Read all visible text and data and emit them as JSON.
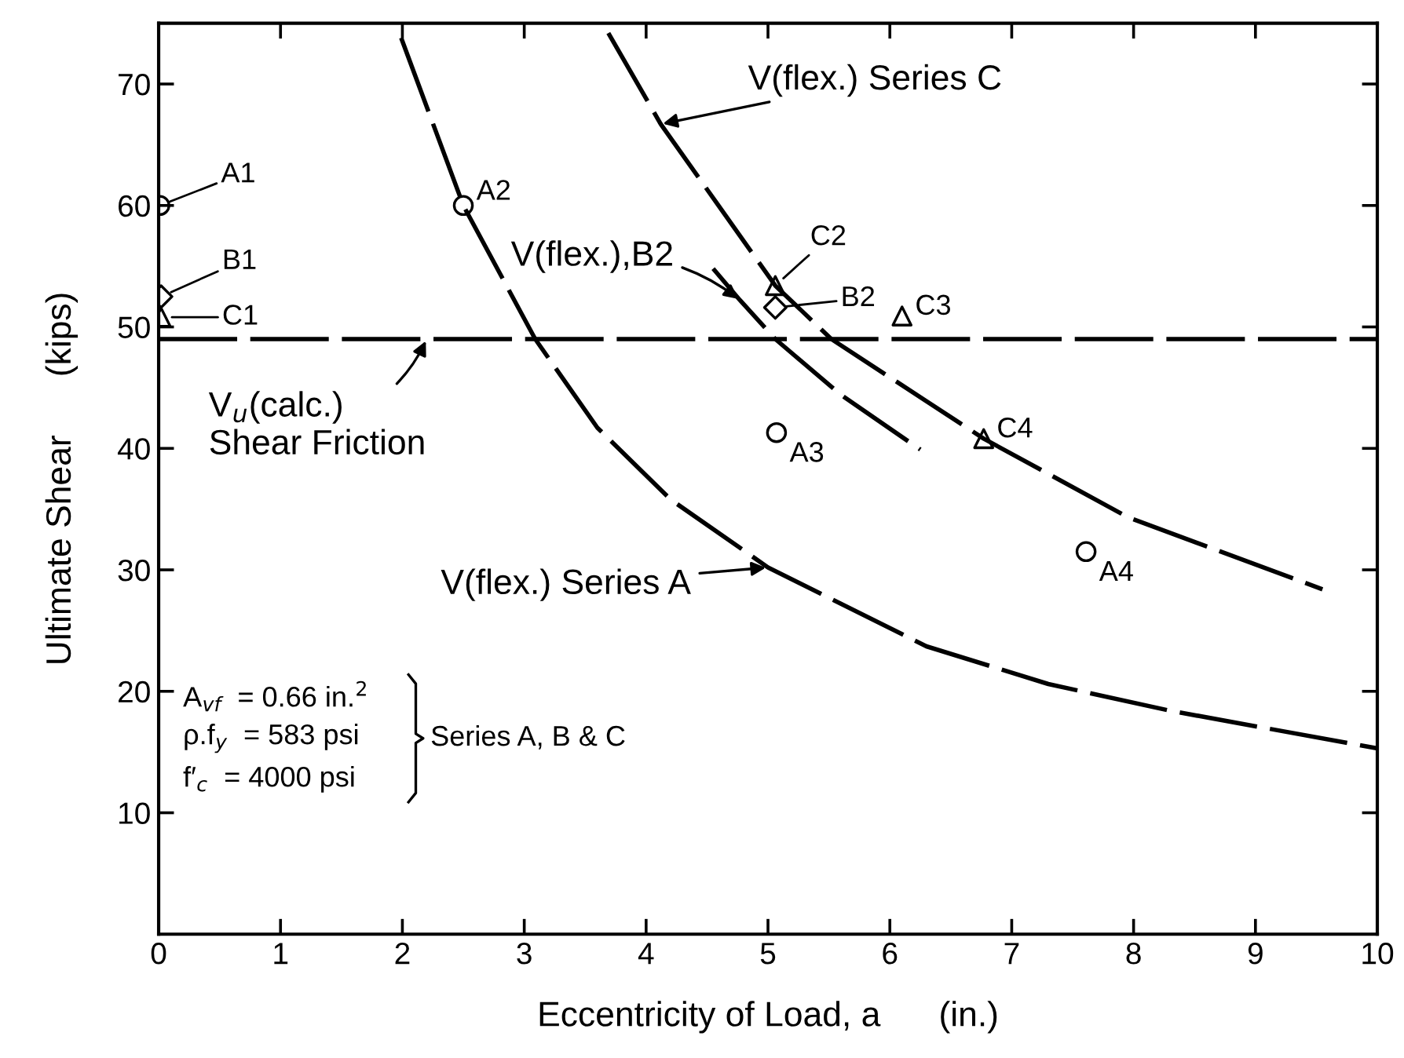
{
  "chart_data": {
    "type": "scatter",
    "xlabel": "Eccentricity of Load, a      (in.)",
    "ylabel": "Ultimate Shear      (kips)",
    "xlim": [
      0,
      10
    ],
    "ylim": [
      0,
      75
    ],
    "xticks": [
      0,
      1,
      2,
      3,
      4,
      5,
      6,
      7,
      8,
      9,
      10
    ],
    "yticks": [
      10,
      20,
      30,
      40,
      50,
      60,
      70
    ],
    "grid": false,
    "legend": false,
    "series": [
      {
        "marker": "circle",
        "color": "#000000",
        "x": [
          0.01,
          2.5,
          5.07,
          7.61
        ],
        "values": [
          60,
          60,
          41.3,
          31.5
        ]
      },
      {
        "marker": "diamond",
        "color": "#000000",
        "x": [
          0.02,
          5.06
        ],
        "values": [
          52.5,
          51.6
        ]
      },
      {
        "marker": "triangle",
        "color": "#000000",
        "x": [
          0.02,
          5.06,
          6.1,
          6.77
        ],
        "values": [
          50.8,
          53.4,
          50.9,
          40.8
        ]
      },
      {
        "type": "line",
        "line_style": "dashed",
        "color": "#000000",
        "x": [
          1.99,
          2.5,
          3.09,
          3.6,
          4.2,
          5.0,
          6.3,
          7.3,
          8.3,
          10.0
        ],
        "values": [
          73.8,
          60,
          49,
          41.7,
          35.8,
          30.2,
          23.7,
          20.6,
          18.4,
          15.3
        ]
      },
      {
        "type": "line",
        "line_style": "dashed",
        "color": "#000000",
        "x": [
          3.69,
          4.12,
          5.06,
          5.52,
          6.77,
          7.96,
          9.55
        ],
        "values": [
          74.2,
          66.7,
          53.4,
          49,
          40.8,
          34.3,
          28.4
        ]
      },
      {
        "type": "line",
        "line_style": "dashed",
        "color": "#000000",
        "x": [
          4.55,
          4.77,
          5.06,
          5.6,
          6.25
        ],
        "values": [
          54.8,
          52.2,
          49,
          44.4,
          39.9
        ]
      }
    ],
    "ref_lines": [
      {
        "axis": "y",
        "value": 49,
        "line_style": "dashed",
        "color": "#000000"
      }
    ],
    "annotations": [
      {
        "text": "A1",
        "x": 0.01,
        "y": 60
      },
      {
        "text": "B1",
        "x": 0.02,
        "y": 52.5
      },
      {
        "text": "C1",
        "x": 0.02,
        "y": 50.8
      },
      {
        "text": "A2",
        "x": 2.5,
        "y": 60
      },
      {
        "text": "C2",
        "x": 5.06,
        "y": 53.4
      },
      {
        "text": "B2",
        "x": 5.06,
        "y": 51.6
      },
      {
        "text": "C3",
        "x": 6.1,
        "y": 50.9
      },
      {
        "text": "A3",
        "x": 5.07,
        "y": 41.3
      },
      {
        "text": "C4",
        "x": 6.77,
        "y": 40.8
      },
      {
        "text": "A4",
        "x": 7.61,
        "y": 31.5
      },
      {
        "text": "V(flex.) Series C",
        "x": 4.12,
        "y": 66.7
      },
      {
        "text": "V(flex.),B2",
        "x": 4.77,
        "y": 52.2
      },
      {
        "text": "V(flex.) Series A",
        "x": 5.0,
        "y": 30.2
      },
      {
        "text": "V$_{u}$(calc.)\nShear Friction",
        "x": 2.2,
        "y": 49
      },
      "A$_{vf}$  = 0.66 in.$^{2}$",
      "ρ.f$_{y}$  = 583 psi",
      "f′$_{c}$  = 4000 psi",
      "Series A, B & C"
    ]
  }
}
